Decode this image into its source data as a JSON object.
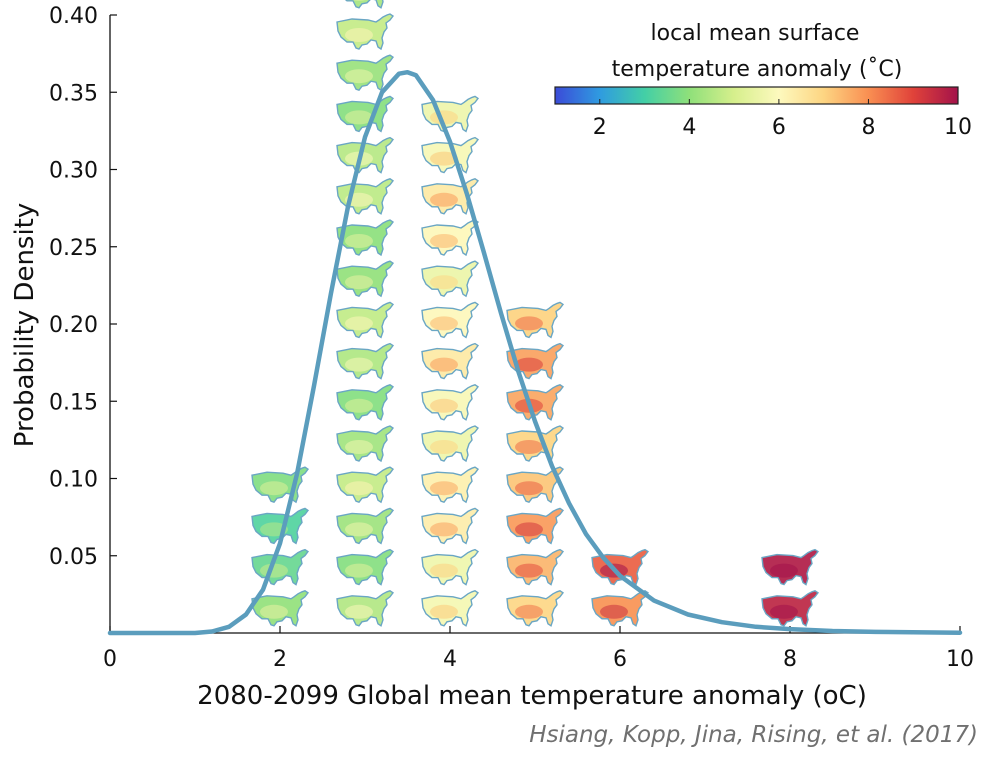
{
  "chart_data": {
    "type": "line",
    "xlabel": "2080-2099 Global mean temperature anomaly (oC)",
    "ylabel": "Probability Density",
    "xlim": [
      0,
      10
    ],
    "ylim": [
      0,
      0.4
    ],
    "xticks": [
      0,
      2,
      4,
      6,
      8,
      10
    ],
    "xtick_labels": [
      "0",
      "2",
      "4",
      "6",
      "8",
      "10"
    ],
    "yticks": [
      0.05,
      0.1,
      0.15,
      0.2,
      0.25,
      0.3,
      0.35,
      0.4
    ],
    "ytick_labels": [
      "0.05",
      "0.10",
      "0.15",
      "0.20",
      "0.25",
      "0.30",
      "0.35",
      "0.40"
    ],
    "grid": false,
    "line_color": "#5b9dbd",
    "series": [
      {
        "x": [
          0,
          1.0,
          1.2,
          1.4,
          1.6,
          1.8,
          2.0,
          2.2,
          2.4,
          2.6,
          2.8,
          3.0,
          3.2,
          3.4,
          3.5,
          3.6,
          3.8,
          4.0,
          4.2,
          4.4,
          4.6,
          4.8,
          5.0,
          5.2,
          5.4,
          5.6,
          5.8,
          6.0,
          6.4,
          6.8,
          7.2,
          7.6,
          8.0,
          8.5,
          9.0,
          10.0
        ],
        "y": [
          0,
          0.0,
          0.001,
          0.004,
          0.012,
          0.028,
          0.058,
          0.103,
          0.16,
          0.22,
          0.276,
          0.321,
          0.35,
          0.362,
          0.363,
          0.361,
          0.345,
          0.318,
          0.284,
          0.246,
          0.207,
          0.17,
          0.137,
          0.108,
          0.084,
          0.064,
          0.049,
          0.037,
          0.021,
          0.012,
          0.007,
          0.004,
          0.0025,
          0.0013,
          0.0007,
          0.0002
        ]
      }
    ],
    "map_bins": [
      {
        "x": 2.0,
        "count": 4,
        "mean_local_anomaly": 3.6
      },
      {
        "x": 3.0,
        "count": 16,
        "mean_local_anomaly": 4.3
      },
      {
        "x": 4.0,
        "count": 13,
        "mean_local_anomaly": 6.0
      },
      {
        "x": 5.0,
        "count": 8,
        "mean_local_anomaly": 7.4
      },
      {
        "x": 6.0,
        "count": 2,
        "mean_local_anomaly": 8.2
      },
      {
        "x": 8.0,
        "count": 2,
        "mean_local_anomaly": 9.4
      }
    ],
    "colorbar": {
      "title_line1": "local mean surface",
      "title_line2": "temperature anomaly (˚C)",
      "range": [
        1,
        10
      ],
      "ticks": [
        2,
        4,
        6,
        8,
        10
      ],
      "tick_labels": [
        "2",
        "4",
        "6",
        "8",
        "10"
      ],
      "colors": [
        "#3b4bd8",
        "#2f9be0",
        "#43cfa6",
        "#8fe07a",
        "#d6ef8c",
        "#fdf9be",
        "#fdd582",
        "#f98f52",
        "#e0423a",
        "#a3124a"
      ]
    }
  },
  "citation": "Hsiang, Kopp, Jina, Rising, et al. (2017)"
}
